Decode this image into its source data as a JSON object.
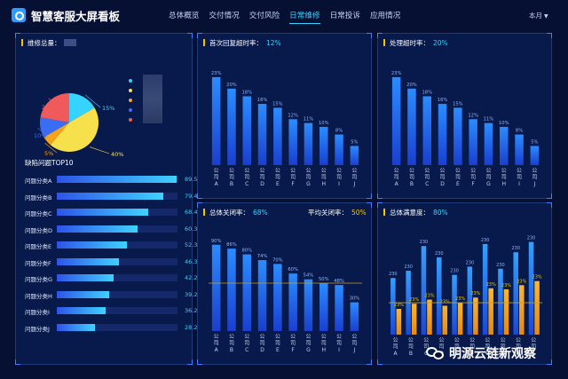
{
  "header": {
    "title": "智慧客服大屏看板",
    "nav": [
      "总体概览",
      "交付情况",
      "交付风险",
      "日常维修",
      "日常投诉",
      "应用情况"
    ],
    "active_nav_index": 3,
    "month_label": "本月"
  },
  "panels": {
    "maintenance": {
      "title": "维修总量："
    },
    "first_reply": {
      "title": "首次回复超时率：",
      "value": "12%"
    },
    "processing": {
      "title": "处理超时率：",
      "value": "20%"
    },
    "close_rate": {
      "title": "总体关闭率：",
      "value": "68%",
      "avg_label": "平均关闭率：",
      "avg_value": "50%"
    },
    "satisfaction": {
      "title": "总体满意度：",
      "value": "80%"
    }
  },
  "colors": {
    "accent": "#36d3ff",
    "highlight": "#f3c500",
    "bar_orange": "#f7a21b"
  },
  "pie": {
    "labels": [
      "15%",
      "40%",
      "5%",
      "10%",
      "20%"
    ],
    "slices": [
      {
        "value": 15,
        "color": "#36d3ff"
      },
      {
        "value": 40,
        "color": "#f6e04b"
      },
      {
        "value": 5,
        "color": "#f7a21b"
      },
      {
        "value": 10,
        "color": "#3a6cf6"
      },
      {
        "value": 20,
        "color": "#f05a5a"
      }
    ]
  },
  "top10": {
    "title": "缺陷问题TOP10",
    "items": [
      {
        "label": "问题分类A",
        "value": 89.58,
        "text": "89.58%"
      },
      {
        "label": "问题分类B",
        "value": 79.48,
        "text": "79.48%"
      },
      {
        "label": "问题分类C",
        "value": 68.42,
        "text": "68.42%"
      },
      {
        "label": "问题分类D",
        "value": 60.38,
        "text": "60.38%"
      },
      {
        "label": "问题分类E",
        "value": 52.33,
        "text": "52.33%"
      },
      {
        "label": "问题分类F",
        "value": 46.3,
        "text": "46.30%"
      },
      {
        "label": "问题分类G",
        "value": 42.28,
        "text": "42.28%"
      },
      {
        "label": "问题分类H",
        "value": 39.26,
        "text": "39.26%"
      },
      {
        "label": "问题分类I",
        "value": 36.24,
        "text": "36.24%"
      },
      {
        "label": "问题分类J",
        "value": 28.2,
        "text": "28.20%"
      }
    ]
  },
  "chart_data": [
    {
      "type": "bar",
      "title": "首次回复超时率",
      "categories": [
        "公司A",
        "公司B",
        "公司C",
        "公司D",
        "公司E",
        "公司F",
        "公司G",
        "公司H",
        "公司I",
        "公司J"
      ],
      "values": [
        23,
        20,
        18,
        16,
        15,
        12,
        11,
        10,
        8,
        5
      ],
      "data_labels": [
        "23%",
        "20%",
        "18%",
        "16%",
        "15%",
        "12%",
        "11%",
        "10%",
        "8%",
        "5%"
      ],
      "ylim": [
        0,
        26
      ]
    },
    {
      "type": "bar",
      "title": "处理超时率",
      "categories": [
        "公司A",
        "公司B",
        "公司C",
        "公司D",
        "公司E",
        "公司F",
        "公司G",
        "公司H",
        "公司I",
        "公司J"
      ],
      "values": [
        23,
        20,
        18,
        16,
        15,
        12,
        11,
        10,
        8,
        5
      ],
      "data_labels": [
        "23%",
        "20%",
        "18%",
        "16%",
        "15%",
        "12%",
        "11%",
        "10%",
        "8%",
        "5%"
      ],
      "ylim": [
        0,
        26
      ]
    },
    {
      "type": "bar",
      "title": "总体关闭率",
      "categories": [
        "公司A",
        "公司B",
        "公司C",
        "公司D",
        "公司E",
        "公司F",
        "公司G",
        "公司H",
        "公司I",
        "公司J"
      ],
      "values": [
        90,
        86,
        80,
        74,
        70,
        60,
        54,
        50,
        48,
        30
      ],
      "data_labels": [
        "90%",
        "86%",
        "80%",
        "74%",
        "70%",
        "60%",
        "54%",
        "50%",
        "48%",
        "30%"
      ],
      "reference_line": 50,
      "ylim": [
        0,
        100
      ]
    },
    {
      "type": "bar",
      "title": "总体满意度",
      "categories": [
        "公司A",
        "公司B",
        "公司C",
        "公司D",
        "公司E",
        "公司F",
        "公司G",
        "公司H",
        "公司I",
        "公司J"
      ],
      "series": [
        {
          "values": [
            230,
            230,
            230,
            230,
            230,
            230,
            230,
            230,
            230,
            230
          ],
          "color": "#2f86ff"
        },
        {
          "values": [
            23,
            23,
            23,
            23,
            23,
            23,
            23,
            23,
            23,
            23
          ],
          "color": "#f7a21b"
        }
      ],
      "data_labels": [
        "230",
        "23%"
      ]
    }
  ],
  "watermark": "明源云链新观察"
}
